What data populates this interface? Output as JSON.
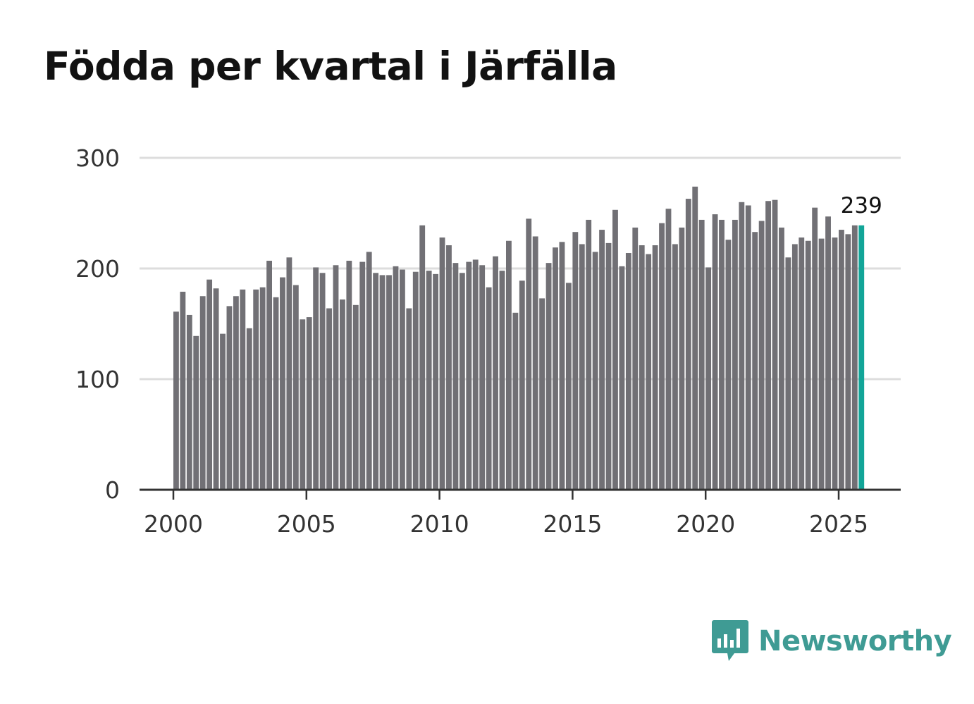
{
  "title": "Födda per kvartal i Järfälla",
  "brand": {
    "name": "Newsworthy",
    "color": "#3f9b94",
    "icon": "newsworthy-logo-icon"
  },
  "colors": {
    "bar": "#717075",
    "highlight": "#12a598",
    "grid": "#dddddd",
    "axis": "#333333"
  },
  "chart_data": {
    "type": "bar",
    "title": "Födda per kvartal i Järfälla",
    "xlabel": "",
    "ylabel": "",
    "x_start": 2000.0,
    "x_step": 0.25,
    "xlim": [
      1999.25,
      2027.25
    ],
    "ylim": [
      0,
      300
    ],
    "yticks": [
      0,
      100,
      200,
      300
    ],
    "xticks": [
      2000,
      2005,
      2010,
      2015,
      2020,
      2025
    ],
    "grid": true,
    "highlight_last": true,
    "last_label": "239",
    "values": [
      161,
      179,
      158,
      139,
      175,
      190,
      182,
      141,
      166,
      175,
      181,
      146,
      181,
      183,
      207,
      174,
      192,
      210,
      185,
      154,
      156,
      201,
      196,
      164,
      203,
      172,
      207,
      167,
      206,
      215,
      196,
      194,
      194,
      202,
      199,
      164,
      197,
      239,
      198,
      195,
      228,
      221,
      205,
      196,
      206,
      208,
      203,
      183,
      211,
      198,
      225,
      160,
      189,
      245,
      229,
      173,
      205,
      219,
      224,
      187,
      233,
      222,
      244,
      215,
      235,
      223,
      253,
      202,
      214,
      237,
      221,
      213,
      221,
      241,
      254,
      222,
      237,
      263,
      274,
      244,
      201,
      249,
      244,
      226,
      244,
      260,
      257,
      233,
      243,
      261,
      262,
      237,
      210,
      222,
      228,
      225,
      255,
      227,
      247,
      228,
      235,
      231,
      239,
      239
    ]
  }
}
